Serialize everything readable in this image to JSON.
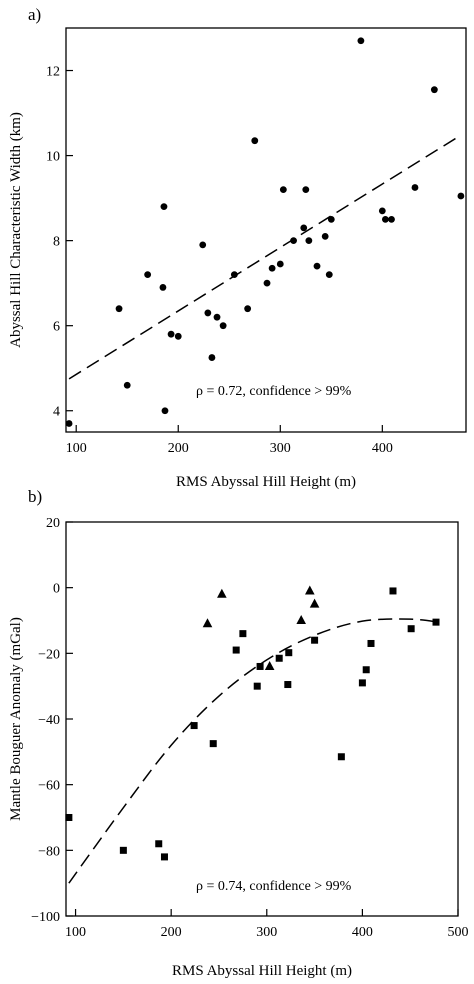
{
  "chart_data": [
    {
      "type": "scatter",
      "panel_label": "a)",
      "xlabel": "RMS Abyssal Hill Height (m)",
      "ylabel": "Abyssal Hill Characteristic Width (km)",
      "xlim": [
        90,
        482
      ],
      "ylim": [
        3.5,
        13.0
      ],
      "xticks": [
        100,
        200,
        300,
        400,
        500
      ],
      "yticks": [
        4,
        6,
        8,
        10,
        12
      ],
      "xtick_labels": [
        "100",
        "200",
        "300",
        "400",
        "500"
      ],
      "ytick_labels": [
        "4",
        "6",
        "8",
        "10",
        "12"
      ],
      "annotation": "ρ = 0.72, confidence > 99%",
      "marker": "circle",
      "points": [
        [
          93,
          3.7
        ],
        [
          142,
          6.4
        ],
        [
          150,
          4.6
        ],
        [
          170,
          7.2
        ],
        [
          185,
          6.9
        ],
        [
          186,
          8.8
        ],
        [
          187,
          4.0
        ],
        [
          193,
          5.8
        ],
        [
          200,
          5.75
        ],
        [
          224,
          7.9
        ],
        [
          229,
          6.3
        ],
        [
          233,
          5.25
        ],
        [
          238,
          6.2
        ],
        [
          244,
          6.0
        ],
        [
          255,
          7.2
        ],
        [
          268,
          6.4
        ],
        [
          275,
          10.35
        ],
        [
          287,
          7.0
        ],
        [
          292,
          7.35
        ],
        [
          300,
          7.45
        ],
        [
          303,
          9.2
        ],
        [
          313,
          8.0
        ],
        [
          323,
          8.3
        ],
        [
          325,
          9.2
        ],
        [
          328,
          8.0
        ],
        [
          336,
          7.4
        ],
        [
          344,
          8.1
        ],
        [
          348,
          7.2
        ],
        [
          350,
          8.5
        ],
        [
          379,
          12.7
        ],
        [
          400,
          8.7
        ],
        [
          403,
          8.5
        ],
        [
          409,
          8.5
        ],
        [
          432,
          9.25
        ],
        [
          451,
          11.55
        ],
        [
          477,
          9.05
        ]
      ],
      "fit_line": [
        [
          93,
          4.75
        ],
        [
          475,
          10.45
        ]
      ]
    },
    {
      "type": "scatter",
      "panel_label": "b)",
      "xlabel": "RMS Abyssal Hill Height (m)",
      "ylabel": "Mantle Bouguer Anomaly (mGal)",
      "xlim": [
        90,
        500
      ],
      "ylim": [
        -100,
        20
      ],
      "xticks": [
        100,
        200,
        300,
        400,
        500
      ],
      "yticks": [
        -100,
        -80,
        -60,
        -40,
        -20,
        0,
        20
      ],
      "xtick_labels": [
        "100",
        "200",
        "300",
        "400",
        "500"
      ],
      "ytick_labels": [
        "−100",
        "−80",
        "−60",
        "−40",
        "−20",
        "0",
        "20"
      ],
      "annotation": "ρ = 0.74, confidence > 99%",
      "squares": [
        [
          93,
          -70
        ],
        [
          150,
          -80
        ],
        [
          187,
          -78
        ],
        [
          193,
          -82
        ],
        [
          224,
          -42
        ],
        [
          244,
          -47.5
        ],
        [
          268,
          -19
        ],
        [
          275,
          -14
        ],
        [
          290,
          -30
        ],
        [
          293,
          -24
        ],
        [
          313,
          -21.5
        ],
        [
          322,
          -29.5
        ],
        [
          323,
          -19.8
        ],
        [
          350,
          -16
        ],
        [
          378,
          -51.5
        ],
        [
          400,
          -29
        ],
        [
          404,
          -25
        ],
        [
          409,
          -17
        ],
        [
          432,
          -1
        ],
        [
          451,
          -12.5
        ],
        [
          477,
          -10.5
        ]
      ],
      "triangles": [
        [
          238,
          -11
        ],
        [
          253,
          -2
        ],
        [
          303,
          -24
        ],
        [
          336,
          -10
        ],
        [
          345,
          -1
        ],
        [
          350,
          -5
        ]
      ],
      "fit_curve": [
        [
          93,
          -90
        ],
        [
          150,
          -67
        ],
        [
          200,
          -48
        ],
        [
          250,
          -33
        ],
        [
          300,
          -22
        ],
        [
          350,
          -14.5
        ],
        [
          400,
          -10.2
        ],
        [
          450,
          -9.6
        ],
        [
          480,
          -10.5
        ]
      ]
    }
  ]
}
